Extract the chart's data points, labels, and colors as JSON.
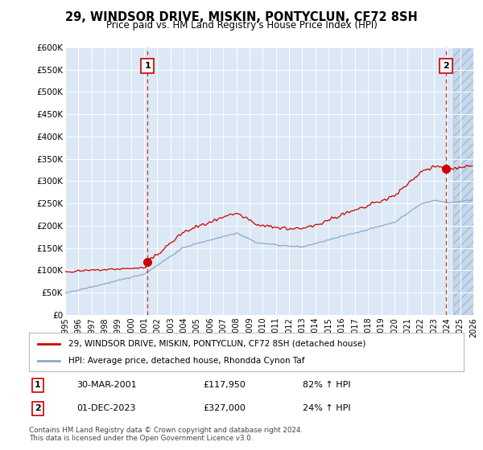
{
  "title": "29, WINDSOR DRIVE, MISKIN, PONTYCLUN, CF72 8SH",
  "subtitle": "Price paid vs. HM Land Registry's House Price Index (HPI)",
  "background_color": "#ffffff",
  "plot_bg_color": "#dce8f5",
  "red_line_color": "#cc0000",
  "blue_line_color": "#88aacc",
  "grid_color": "#ffffff",
  "ylim": [
    0,
    600000
  ],
  "yticks": [
    0,
    50000,
    100000,
    150000,
    200000,
    250000,
    300000,
    350000,
    400000,
    450000,
    500000,
    550000,
    600000
  ],
  "ytick_labels": [
    "£0",
    "£50K",
    "£100K",
    "£150K",
    "£200K",
    "£250K",
    "£300K",
    "£350K",
    "£400K",
    "£450K",
    "£500K",
    "£550K",
    "£600K"
  ],
  "xmin_year": 1995,
  "xmax_year": 2026,
  "xticks": [
    1995,
    1996,
    1997,
    1998,
    1999,
    2000,
    2001,
    2002,
    2003,
    2004,
    2005,
    2006,
    2007,
    2008,
    2009,
    2010,
    2011,
    2012,
    2013,
    2014,
    2015,
    2016,
    2017,
    2018,
    2019,
    2020,
    2021,
    2022,
    2023,
    2024,
    2025,
    2026
  ],
  "sale1_year": 2001.25,
  "sale1_price": 117950,
  "sale1_label": "1",
  "sale2_year": 2023.92,
  "sale2_price": 327000,
  "sale2_label": "2",
  "legend_line1": "29, WINDSOR DRIVE, MISKIN, PONTYCLUN, CF72 8SH (detached house)",
  "legend_line2": "HPI: Average price, detached house, Rhondda Cynon Taf",
  "annotation1_num": "1",
  "annotation1_date": "30-MAR-2001",
  "annotation1_price": "£117,950",
  "annotation1_hpi": "82% ↑ HPI",
  "annotation2_num": "2",
  "annotation2_date": "01-DEC-2023",
  "annotation2_price": "£327,000",
  "annotation2_hpi": "24% ↑ HPI",
  "footer": "Contains HM Land Registry data © Crown copyright and database right 2024.\nThis data is licensed under the Open Government Licence v3.0."
}
